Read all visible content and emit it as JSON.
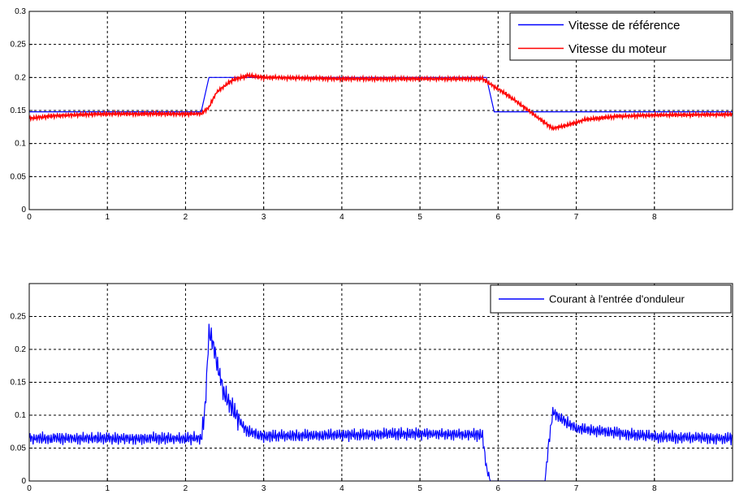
{
  "chart_data": [
    {
      "type": "line",
      "xlim": [
        0,
        9
      ],
      "ylim": [
        0,
        0.3
      ],
      "xticks": [
        "0",
        "1",
        "2",
        "3",
        "4",
        "5",
        "6",
        "7",
        "8"
      ],
      "yticks": [
        "0",
        "0.05",
        "0.1",
        "0.15",
        "0.2",
        "0.25",
        "0.3"
      ],
      "grid": true,
      "legend_position": "top-right",
      "series": [
        {
          "name": "Vitesse de référence",
          "color": "#0000ff",
          "x": [
            0,
            2.2,
            2.3,
            5.85,
            5.95,
            9
          ],
          "y": [
            0.148,
            0.148,
            0.2,
            0.2,
            0.148,
            0.148
          ]
        },
        {
          "name": "Vitesse du moteur",
          "color": "#ff0000",
          "x": [
            0,
            0.3,
            1,
            2.2,
            2.3,
            2.4,
            2.6,
            2.8,
            3.0,
            4,
            5,
            5.8,
            5.9,
            6.1,
            6.3,
            6.5,
            6.7,
            6.9,
            7.1,
            7.5,
            8,
            9
          ],
          "y": [
            0.138,
            0.142,
            0.145,
            0.145,
            0.155,
            0.178,
            0.196,
            0.203,
            0.2,
            0.198,
            0.198,
            0.198,
            0.19,
            0.175,
            0.158,
            0.14,
            0.123,
            0.128,
            0.136,
            0.141,
            0.143,
            0.144
          ]
        }
      ]
    },
    {
      "type": "line",
      "xlim": [
        0,
        9
      ],
      "ylim": [
        0,
        0.3
      ],
      "xticks": [
        "0",
        "1",
        "2",
        "3",
        "4",
        "5",
        "6",
        "7",
        "8"
      ],
      "yticks": [
        "0",
        "0.05",
        "0.1",
        "0.15",
        "0.2",
        "0.25"
      ],
      "grid": true,
      "legend_position": "top-right",
      "series": [
        {
          "name": "Courant à l'entrée d'onduleur",
          "color": "#0000ff",
          "x": [
            0,
            2.2,
            2.25,
            2.3,
            2.35,
            2.4,
            2.5,
            2.6,
            2.7,
            2.8,
            3.0,
            4,
            5,
            5.8,
            5.85,
            5.9,
            6.6,
            6.65,
            6.7,
            6.8,
            7.0,
            8,
            9
          ],
          "y": [
            0.065,
            0.065,
            0.11,
            0.225,
            0.21,
            0.18,
            0.13,
            0.11,
            0.09,
            0.075,
            0.068,
            0.07,
            0.072,
            0.07,
            0.02,
            0,
            0,
            0.06,
            0.105,
            0.095,
            0.08,
            0.067,
            0.065
          ]
        }
      ]
    }
  ]
}
